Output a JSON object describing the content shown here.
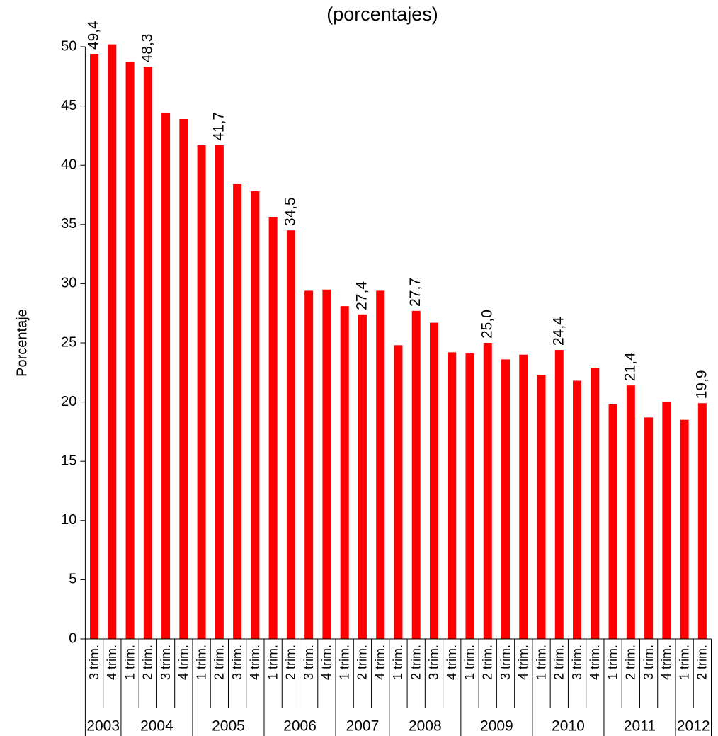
{
  "chart_data": {
    "type": "bar",
    "title": "(porcentajes)",
    "y_label": "Porcentaje",
    "groups": [
      {
        "name": "2003",
        "categories": [
          "3 trim.",
          "4 trim."
        ]
      },
      {
        "name": "2004",
        "categories": [
          "1 trim.",
          "2 trim.",
          "3 trim.",
          "4 trim."
        ]
      },
      {
        "name": "2005",
        "categories": [
          "1 trim.",
          "2 trim.",
          "3 trim.",
          "4 trim."
        ]
      },
      {
        "name": "2006",
        "categories": [
          "1 trim.",
          "2 trim.",
          "3 trim.",
          "4 trim."
        ]
      },
      {
        "name": "2007",
        "categories": [
          "1 trim.",
          "2 trim.",
          "4 trim."
        ]
      },
      {
        "name": "2008",
        "categories": [
          "1 trim.",
          "2 trim.",
          "3 trim.",
          "4 trim."
        ]
      },
      {
        "name": "2009",
        "categories": [
          "1 trim.",
          "2 trim.",
          "3 trim.",
          "4 trim."
        ]
      },
      {
        "name": "2010",
        "categories": [
          "1 trim.",
          "2 trim.",
          "3 trim.",
          "4 trim."
        ]
      },
      {
        "name": "2011",
        "categories": [
          "1 trim.",
          "2 trim.",
          "3 trim.",
          "4 trim."
        ]
      },
      {
        "name": "2012",
        "categories": [
          "1 trim.",
          "2 trim."
        ]
      }
    ],
    "values": [
      49.4,
      50.2,
      48.7,
      48.3,
      44.4,
      43.9,
      41.7,
      41.7,
      38.4,
      37.8,
      35.6,
      34.5,
      29.4,
      29.5,
      28.1,
      27.4,
      29.4,
      24.8,
      27.7,
      26.7,
      24.2,
      24.1,
      25.0,
      23.6,
      24.0,
      22.3,
      24.4,
      21.8,
      22.9,
      19.8,
      21.4,
      18.7,
      20.0,
      18.5,
      19.9
    ],
    "value_labels": [
      "49,4",
      null,
      null,
      "48,3",
      null,
      null,
      null,
      "41,7",
      null,
      null,
      null,
      "34,5",
      null,
      null,
      null,
      "27,4",
      null,
      null,
      "27,7",
      null,
      null,
      null,
      "25,0",
      null,
      null,
      null,
      "24,4",
      null,
      null,
      null,
      "21,4",
      null,
      null,
      null,
      "19,9"
    ],
    "color": "#ff0000",
    "ylim": [
      0,
      50
    ],
    "yticks": [
      0,
      5,
      10,
      15,
      20,
      25,
      30,
      35,
      40,
      45,
      50
    ]
  }
}
